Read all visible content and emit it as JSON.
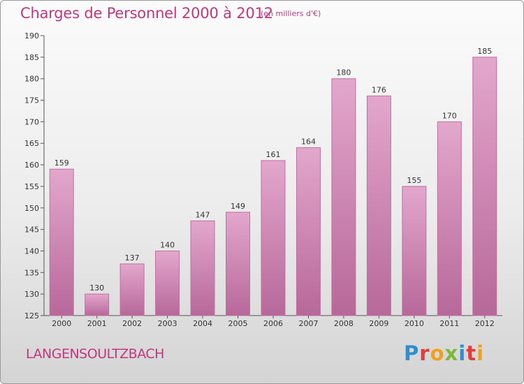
{
  "header": {
    "title": "Charges de Personnel 2000 à 2012",
    "unit": "(en milliers d'€)"
  },
  "footer": {
    "commune": "LANGENSOULTZBACH",
    "logo_text": "Proxiti",
    "logo_colors": [
      "#2b8fd1",
      "#e23c3c",
      "#f2a01c",
      "#7ab83a",
      "#2b8fd1",
      "#e23c3c",
      "#f2a01c"
    ]
  },
  "colors": {
    "bar_top": "#e3a7cc",
    "bar_bottom": "#b7689a",
    "bar_edge": "#c1709f",
    "title": "#c0387e"
  },
  "chart_data": {
    "type": "bar",
    "title": "Charges de Personnel 2000 à 2012",
    "subtitle": "(en milliers d'€)",
    "categories": [
      "2000",
      "2001",
      "2002",
      "2003",
      "2004",
      "2005",
      "2006",
      "2007",
      "2008",
      "2009",
      "2010",
      "2011",
      "2012"
    ],
    "values": [
      159,
      130,
      137,
      140,
      147,
      149,
      161,
      164,
      180,
      176,
      155,
      170,
      185
    ],
    "xlabel": "",
    "ylabel": "",
    "ylim": [
      125,
      190
    ],
    "yticks": [
      125,
      130,
      135,
      140,
      145,
      150,
      155,
      160,
      165,
      170,
      175,
      180,
      185,
      190
    ],
    "grid": false,
    "legend": "none"
  }
}
